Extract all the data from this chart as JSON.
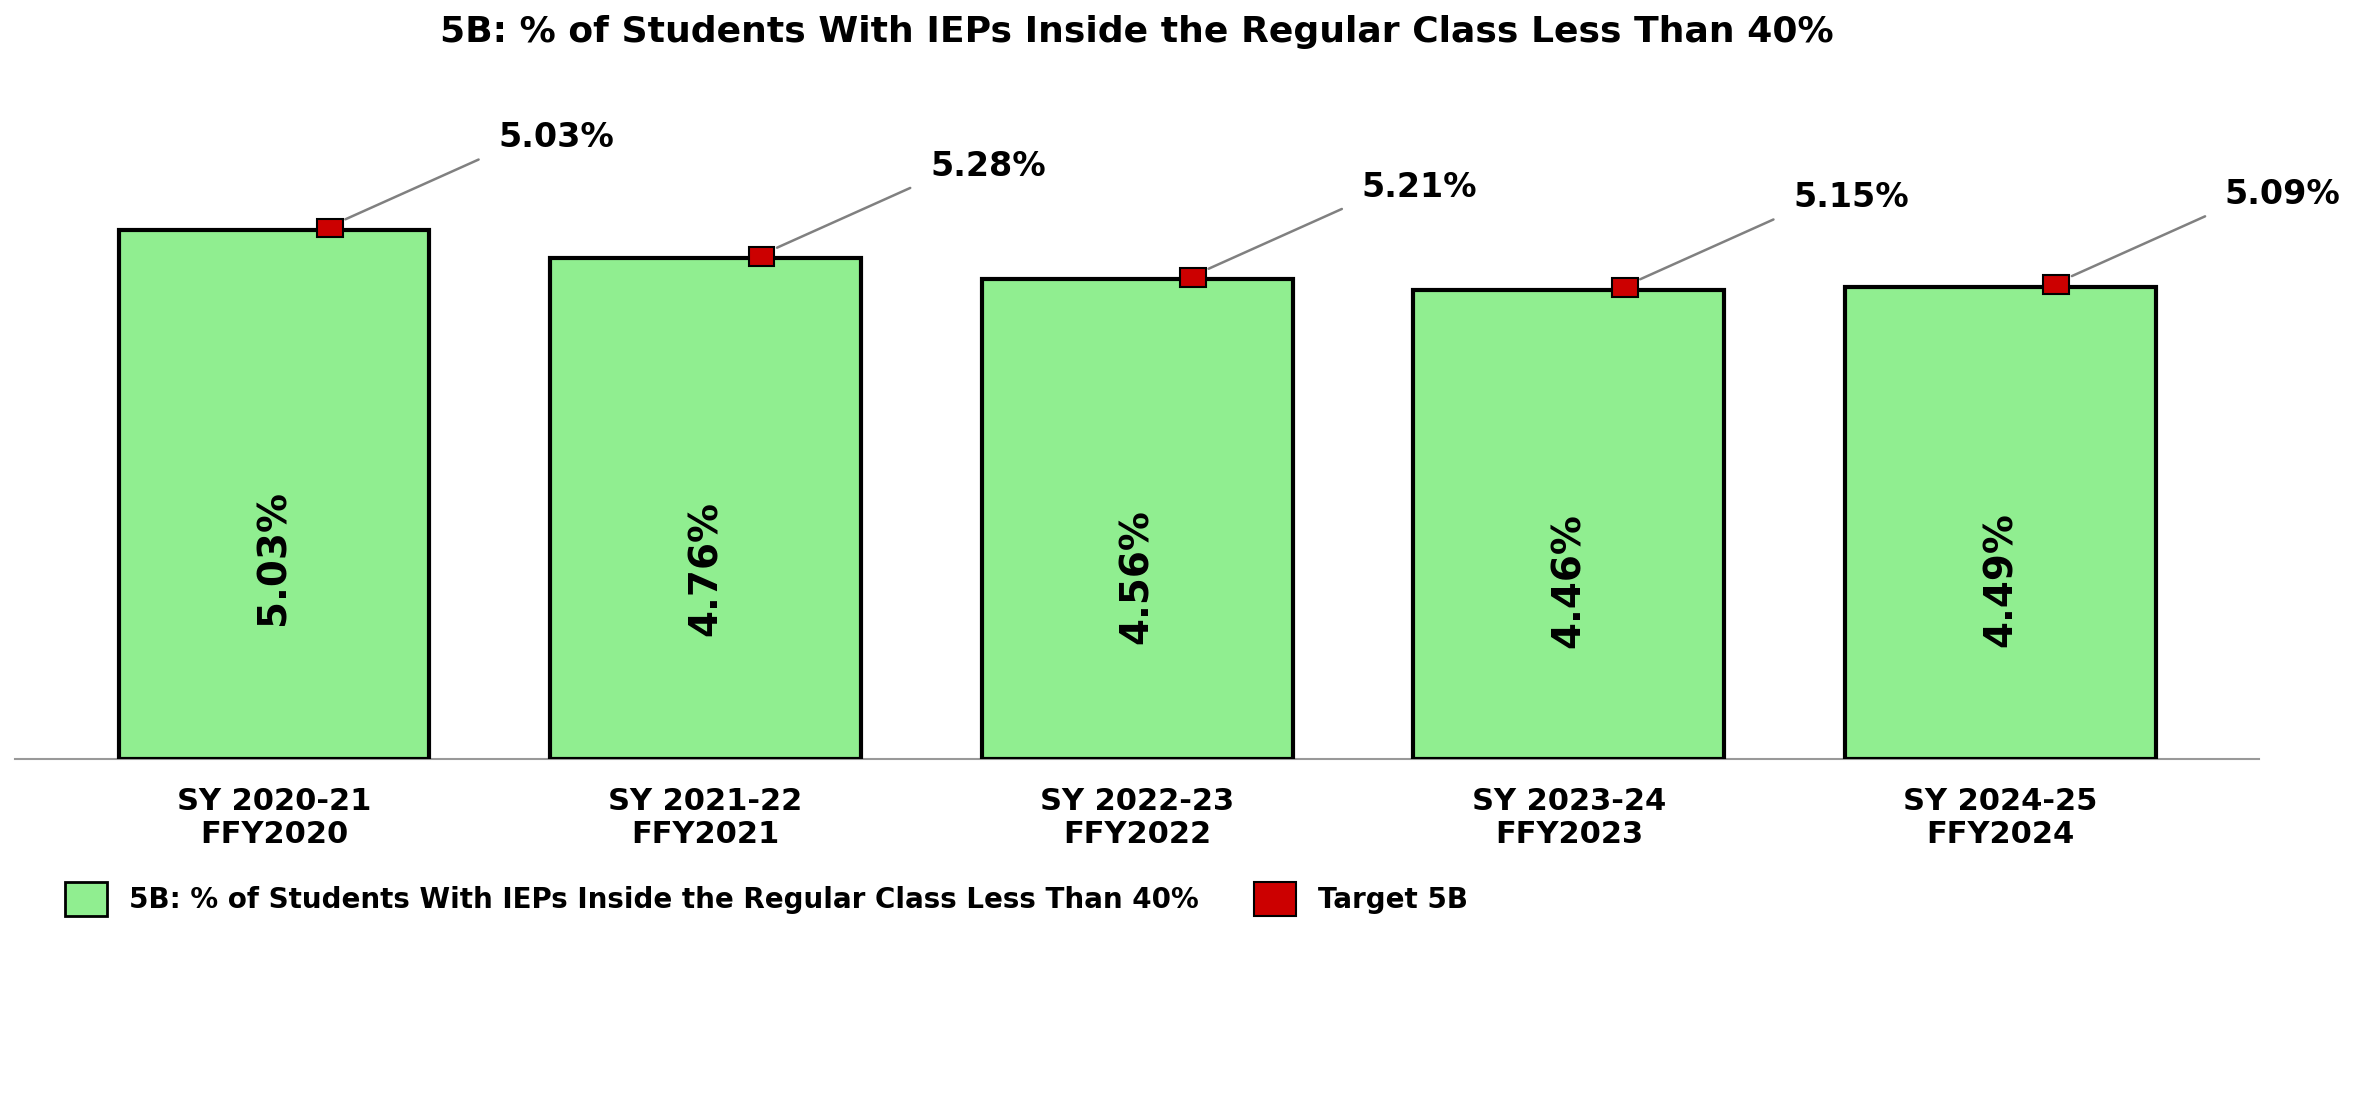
{
  "title": "5B: % of Students With IEPs Inside the Regular Class Less Than 40%",
  "categories": [
    "SY 2020-21\nFFY2020",
    "SY 2021-22\nFFY2021",
    "SY 2022-23\nFFY2022",
    "SY 2023-24\nFFY2023",
    "SY 2024-25\nFFY2024"
  ],
  "bar_values": [
    5.03,
    4.76,
    4.56,
    4.46,
    4.49
  ],
  "target_values": [
    5.03,
    5.28,
    5.21,
    5.15,
    5.09
  ],
  "bar_color": "#90EE90",
  "bar_edge_color": "#000000",
  "target_color": "#CC0000",
  "background_color": "#FFFFFF",
  "title_fontsize": 26,
  "bar_label_fontsize": 28,
  "target_label_fontsize": 24,
  "tick_label_fontsize": 22,
  "legend_fontsize": 20,
  "ylim": [
    0,
    6.5
  ],
  "bar_width": 0.72,
  "legend_bar_label": "5B: % of Students With IEPs Inside the Regular Class Less Than 40%",
  "legend_target_label": "Target 5B"
}
